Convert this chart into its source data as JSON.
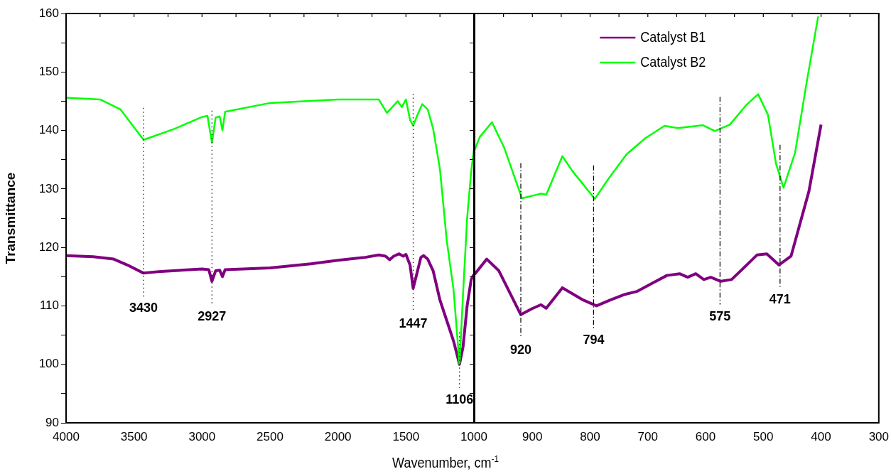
{
  "chart_data": [
    {
      "type": "line",
      "ylabel": "Transmittance",
      "xlabel": "Wavenumber, cm$^{-1}$",
      "xlim": [
        4000,
        1000
      ],
      "ylim": [
        90,
        160
      ],
      "xticks": [
        4000,
        {
          "value": 3750,
          "label": null
        },
        3500,
        {
          "value": 3250,
          "label": null
        },
        3000,
        {
          "value": 2750,
          "label": null
        },
        2500,
        {
          "value": 2250,
          "label": null
        },
        2000,
        {
          "value": 1750,
          "label": null
        },
        1500,
        {
          "value": 1250,
          "label": null
        },
        1000
      ],
      "yticks": [
        90,
        {
          "value": 95,
          "label": null
        },
        100,
        {
          "value": 105,
          "label": null
        },
        110,
        {
          "value": 115,
          "label": null
        },
        120,
        {
          "value": 125,
          "label": null
        },
        130,
        {
          "value": 135,
          "label": null
        },
        140,
        {
          "value": 145,
          "label": null
        },
        150,
        {
          "value": 155,
          "label": null
        },
        160
      ],
      "grid": false,
      "legend": false,
      "marker": "none",
      "line_style": "solid",
      "series": [
        {
          "color": "#800080",
          "x": [
            4000,
            3800,
            3650,
            3550,
            3430,
            3300,
            3000,
            2950,
            2927,
            2900,
            2870,
            2850,
            2830,
            2500,
            2200,
            2000,
            1800,
            1700,
            1650,
            1620,
            1590,
            1550,
            1520,
            1500,
            1470,
            1447,
            1420,
            1390,
            1370,
            1340,
            1300,
            1250,
            1200,
            1150,
            1106,
            1080,
            1050,
            1020,
            1000
          ],
          "values": [
            118.6,
            118.4,
            118.0,
            117.0,
            115.6,
            115.9,
            116.3,
            116.2,
            114.2,
            116.0,
            116.1,
            115.0,
            116.2,
            116.5,
            117.2,
            117.8,
            118.3,
            118.7,
            118.5,
            117.9,
            118.5,
            118.9,
            118.5,
            118.8,
            117.0,
            113.0,
            115.5,
            118.3,
            118.6,
            118.0,
            116.0,
            111.0,
            107.5,
            104.0,
            100,
            103.0,
            110.0,
            114.5,
            115.4
          ]
        },
        {
          "color": "#00ff00",
          "x": [
            4000,
            3750,
            3600,
            3430,
            3200,
            3000,
            2960,
            2927,
            2900,
            2870,
            2850,
            2830,
            2500,
            2000,
            1700,
            1640,
            1600,
            1560,
            1530,
            1500,
            1470,
            1447,
            1420,
            1380,
            1340,
            1300,
            1250,
            1200,
            1150,
            1106,
            1080,
            1050,
            1020,
            1000
          ],
          "values": [
            145.6,
            145.3,
            143.6,
            138.4,
            140.3,
            142.3,
            142.5,
            137.9,
            142.2,
            142.4,
            140.0,
            143.2,
            144.7,
            145.3,
            145.3,
            143.0,
            144.0,
            145.0,
            144.0,
            145.3,
            141.8,
            140.8,
            142.4,
            144.5,
            143.6,
            140.3,
            133.4,
            121.2,
            112.8,
            100,
            112.0,
            125.0,
            133.0,
            136.7
          ]
        }
      ],
      "ref_lines": [
        {
          "axis": "x",
          "value": 3430,
          "label": "3430",
          "line_style": "dotted"
        },
        {
          "axis": "x",
          "value": 2927,
          "label": "2927",
          "line_style": "dotted"
        },
        {
          "axis": "x",
          "value": 1447,
          "label": "1447",
          "line_style": "dotted"
        },
        {
          "axis": "x",
          "value": 1106,
          "label": "1106",
          "line_style": "dotted"
        }
      ]
    },
    {
      "type": "line",
      "xlim": [
        1000,
        300
      ],
      "ylim": [
        90,
        160
      ],
      "tick_labels": "x",
      "xticks": [
        {
          "value": 1000,
          "label": null
        },
        {
          "value": 950,
          "label": null
        },
        900,
        {
          "value": 850,
          "label": null
        },
        800,
        {
          "value": 750,
          "label": null
        },
        700,
        {
          "value": 650,
          "label": null
        },
        600,
        {
          "value": 550,
          "label": null
        },
        500,
        {
          "value": 450,
          "label": null
        },
        400,
        {
          "value": 350,
          "label": null
        },
        300
      ],
      "yticks": [
        90,
        {
          "value": 95,
          "label": null
        },
        100,
        {
          "value": 105,
          "label": null
        },
        110,
        {
          "value": 115,
          "label": null
        },
        120,
        {
          "value": 125,
          "label": null
        },
        130,
        {
          "value": 135,
          "label": null
        },
        140,
        {
          "value": 145,
          "label": null
        },
        150,
        {
          "value": 155,
          "label": null
        },
        160
      ],
      "grid": false,
      "legend": "top",
      "marker": "none",
      "line_style": "solid",
      "series": [
        {
          "name": "Catalyst B1",
          "color": "#800080",
          "x": [
            1000,
            979,
            958,
            920,
            901,
            885,
            876,
            848,
            812,
            789,
            765,
            742,
            718,
            690,
            667,
            645,
            631,
            617,
            603,
            591,
            574,
            555,
            537,
            511,
            494,
            473,
            452,
            421,
            400
          ],
          "values": [
            115.4,
            118.0,
            116.0,
            108.5,
            109.5,
            110.2,
            109.6,
            113.1,
            111.0,
            110.0,
            111.0,
            111.9,
            112.5,
            114.0,
            115.2,
            115.5,
            114.9,
            115.5,
            114.5,
            114.9,
            114.2,
            114.5,
            116.2,
            118.7,
            118.9,
            117.0,
            118.5,
            129.6,
            141.0
          ]
        },
        {
          "name": "Catalyst B2",
          "color": "#00ff00",
          "x": [
            1000,
            991,
            970,
            949,
            918,
            897,
            885,
            876,
            848,
            831,
            817,
            792,
            767,
            737,
            704,
            671,
            648,
            605,
            584,
            558,
            530,
            509,
            492,
            478,
            465,
            445,
            425,
            405
          ],
          "values": [
            136.7,
            138.9,
            141.4,
            137.1,
            128.4,
            128.9,
            129.2,
            129.0,
            135.6,
            133.1,
            131.4,
            128.3,
            131.9,
            135.9,
            138.7,
            140.8,
            140.4,
            140.9,
            139.9,
            141.0,
            144.3,
            146.2,
            142.7,
            134.3,
            130.2,
            136.2,
            148.2,
            159.5
          ]
        }
      ],
      "ref_lines": [
        {
          "axis": "x",
          "value": 920,
          "label": "920",
          "line_style": "dashed"
        },
        {
          "axis": "x",
          "value": 794,
          "label": "794",
          "line_style": "dashed"
        },
        {
          "axis": "x",
          "value": 575,
          "label": "575",
          "line_style": "dashed"
        },
        {
          "axis": "x",
          "value": 471,
          "label": "471",
          "line_style": "dashed"
        }
      ]
    }
  ]
}
